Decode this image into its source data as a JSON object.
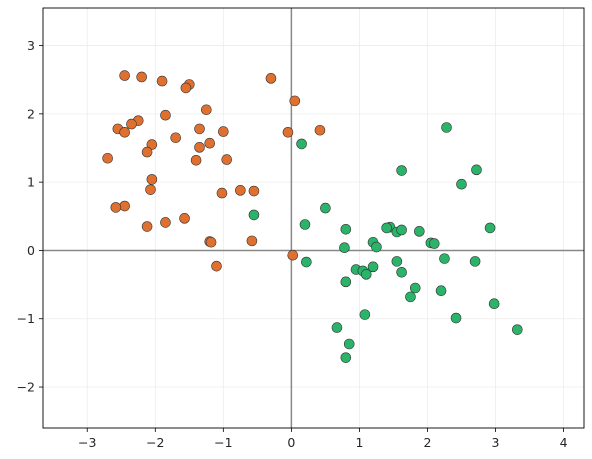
{
  "chart_data": {
    "type": "scatter",
    "title": "",
    "xlabel": "",
    "ylabel": "",
    "xlim": [
      -3.65,
      4.3
    ],
    "ylim": [
      -2.6,
      3.55
    ],
    "xticks": [
      -3,
      -2,
      -1,
      0,
      1,
      2,
      3,
      4
    ],
    "yticks": [
      -2,
      -1,
      0,
      1,
      2,
      3
    ],
    "grid": true,
    "reference_lines": {
      "x": 0,
      "y": 0
    },
    "colors": {
      "series_orange": "#e07030",
      "series_green": "#2bb36a",
      "marker_edge": "#333333",
      "reference_line": "#888888",
      "grid": "#ececec",
      "frame": "#000000"
    },
    "series": [
      {
        "color": "series_orange",
        "points": [
          [
            -2.45,
            2.56
          ],
          [
            -2.2,
            2.54
          ],
          [
            -1.9,
            2.48
          ],
          [
            -1.5,
            2.43
          ],
          [
            -1.55,
            2.38
          ],
          [
            -0.3,
            2.52
          ],
          [
            0.05,
            2.19
          ],
          [
            -1.25,
            2.06
          ],
          [
            -2.25,
            1.9
          ],
          [
            -1.85,
            1.98
          ],
          [
            -2.35,
            1.85
          ],
          [
            -2.55,
            1.78
          ],
          [
            -2.45,
            1.73
          ],
          [
            -1.35,
            1.78
          ],
          [
            -1.0,
            1.74
          ],
          [
            -0.05,
            1.73
          ],
          [
            0.42,
            1.76
          ],
          [
            -1.7,
            1.65
          ],
          [
            -2.05,
            1.55
          ],
          [
            -1.35,
            1.51
          ],
          [
            -1.2,
            1.57
          ],
          [
            -2.12,
            1.44
          ],
          [
            -2.7,
            1.35
          ],
          [
            -1.4,
            1.32
          ],
          [
            -0.95,
            1.33
          ],
          [
            -2.05,
            1.04
          ],
          [
            -2.07,
            0.89
          ],
          [
            -0.75,
            0.88
          ],
          [
            -0.55,
            0.87
          ],
          [
            -1.02,
            0.84
          ],
          [
            -2.45,
            0.65
          ],
          [
            -2.58,
            0.63
          ],
          [
            -1.57,
            0.47
          ],
          [
            -1.85,
            0.41
          ],
          [
            -2.12,
            0.35
          ],
          [
            -1.2,
            0.13
          ],
          [
            -1.18,
            0.12
          ],
          [
            -0.58,
            0.14
          ],
          [
            0.02,
            -0.07
          ],
          [
            -1.1,
            -0.23
          ]
        ]
      },
      {
        "color": "series_green",
        "points": [
          [
            2.28,
            1.8
          ],
          [
            0.15,
            1.56
          ],
          [
            2.72,
            1.18
          ],
          [
            1.62,
            1.17
          ],
          [
            2.5,
            0.97
          ],
          [
            -0.55,
            0.52
          ],
          [
            0.5,
            0.62
          ],
          [
            0.2,
            0.38
          ],
          [
            0.8,
            0.31
          ],
          [
            1.45,
            0.34
          ],
          [
            1.4,
            0.33
          ],
          [
            1.55,
            0.27
          ],
          [
            1.62,
            0.3
          ],
          [
            1.88,
            0.28
          ],
          [
            2.92,
            0.33
          ],
          [
            1.2,
            0.12
          ],
          [
            1.25,
            0.05
          ],
          [
            0.78,
            0.04
          ],
          [
            2.05,
            0.11
          ],
          [
            2.1,
            0.1
          ],
          [
            0.22,
            -0.17
          ],
          [
            1.55,
            -0.16
          ],
          [
            2.25,
            -0.12
          ],
          [
            2.7,
            -0.16
          ],
          [
            0.95,
            -0.28
          ],
          [
            1.05,
            -0.3
          ],
          [
            1.2,
            -0.24
          ],
          [
            1.1,
            -0.35
          ],
          [
            1.62,
            -0.32
          ],
          [
            0.8,
            -0.46
          ],
          [
            1.82,
            -0.55
          ],
          [
            2.2,
            -0.59
          ],
          [
            1.75,
            -0.68
          ],
          [
            2.98,
            -0.78
          ],
          [
            1.08,
            -0.94
          ],
          [
            2.42,
            -0.99
          ],
          [
            0.67,
            -1.13
          ],
          [
            3.32,
            -1.16
          ],
          [
            0.85,
            -1.37
          ],
          [
            0.8,
            -1.57
          ]
        ]
      }
    ]
  }
}
